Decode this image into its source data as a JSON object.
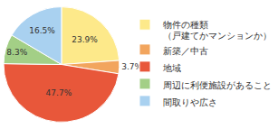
{
  "chart_data": {
    "type": "pie",
    "categories": [
      "物件の種類\n（戸建てかマンションか）",
      "新築／中古",
      "地域",
      "周辺に利便施設があること",
      "間取りや広さ"
    ],
    "values": [
      23.9,
      3.7,
      47.7,
      8.3,
      16.5
    ],
    "value_labels": [
      "23.9%",
      "3.7%",
      "47.7%",
      "8.3%",
      "16.5%"
    ],
    "colors": [
      "#fde98a",
      "#f2a55e",
      "#e8573a",
      "#a3cf86",
      "#a9d1f0"
    ],
    "data_labels": true,
    "legend": "right"
  }
}
